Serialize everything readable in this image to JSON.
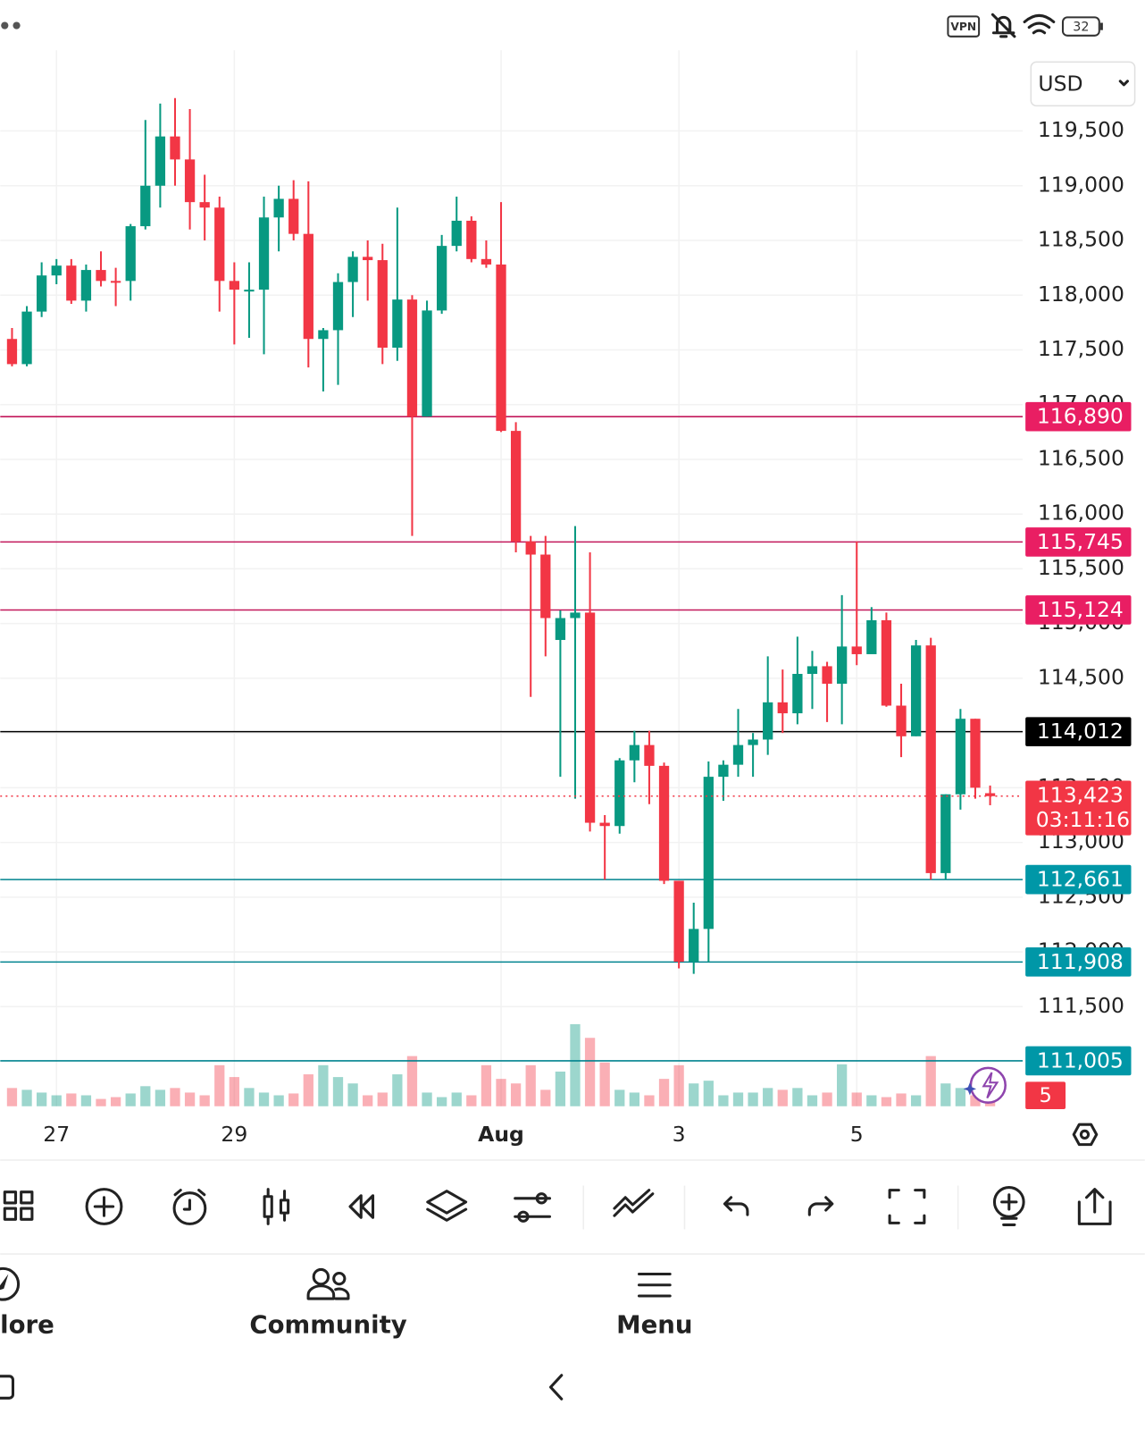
{
  "status_bar": {
    "vpn": "VPN",
    "battery": "32"
  },
  "currency": "USD",
  "chart_data": {
    "type": "candlestick",
    "up_color": "#089981",
    "down_color": "#f23645",
    "open": [
      117600,
      117370,
      117850,
      118180,
      118270,
      117950,
      118230,
      118130,
      118130,
      118630,
      119000,
      119450,
      119240,
      118850,
      118800,
      118130,
      118050,
      118050,
      118710,
      118880,
      118560,
      117600,
      117680,
      118120,
      118350,
      118320,
      117520,
      117960,
      116890,
      117860,
      118450,
      118680,
      118330,
      118280,
      116760,
      115750,
      115630,
      114850,
      115050,
      115100,
      113180,
      113150,
      113750,
      113890,
      113700,
      112650,
      111910,
      112210,
      113600,
      113710,
      113890,
      113940,
      114280,
      114180,
      114540,
      114610,
      114450,
      114790,
      114720,
      115030,
      114250,
      113970,
      114800,
      112720,
      113440,
      114130,
      113450
    ],
    "high": [
      117700,
      117900,
      118300,
      118330,
      118330,
      118280,
      118400,
      118250,
      118650,
      119600,
      119750,
      119800,
      119700,
      119100,
      118900,
      118300,
      118300,
      118900,
      119000,
      119050,
      119040,
      117700,
      118200,
      118400,
      118500,
      118470,
      118800,
      118000,
      117950,
      118550,
      118900,
      118720,
      118500,
      118850,
      116840,
      115800,
      115800,
      115120,
      115890,
      115650,
      113250,
      113770,
      114020,
      114020,
      113730,
      112650,
      112450,
      113740,
      113750,
      114220,
      114000,
      114700,
      114580,
      114880,
      114750,
      114650,
      115260,
      115750,
      115150,
      115100,
      114450,
      114850,
      114870,
      113440,
      114220,
      114130,
      113520
    ],
    "low": [
      117350,
      117350,
      117800,
      118100,
      117920,
      117850,
      118080,
      117900,
      117950,
      118600,
      118800,
      119000,
      118600,
      118500,
      117850,
      117550,
      117610,
      117460,
      118400,
      118500,
      117340,
      117120,
      117180,
      117800,
      117950,
      117370,
      117400,
      115800,
      116890,
      117830,
      118400,
      118300,
      118250,
      116750,
      115650,
      114330,
      114700,
      113600,
      113400,
      113100,
      112660,
      113080,
      113550,
      113350,
      112620,
      111850,
      111800,
      111908,
      113380,
      113600,
      113600,
      113800,
      114000,
      114080,
      114220,
      114100,
      114080,
      114620,
      114730,
      114240,
      113780,
      113970,
      112660,
      112660,
      113300,
      113400,
      113340
    ],
    "close": [
      117370,
      117850,
      118180,
      118270,
      117950,
      118230,
      118130,
      118120,
      118630,
      119000,
      119450,
      119240,
      118850,
      118800,
      118130,
      118050,
      118050,
      118710,
      118880,
      118560,
      117600,
      117680,
      118120,
      118350,
      118320,
      117520,
      117960,
      116890,
      117860,
      118450,
      118680,
      118330,
      118280,
      116760,
      115750,
      115630,
      115050,
      115050,
      115100,
      113180,
      113150,
      113750,
      113890,
      113700,
      112650,
      111910,
      112210,
      113600,
      113710,
      113890,
      113940,
      114280,
      114180,
      114540,
      114610,
      114450,
      114790,
      114720,
      115030,
      114250,
      113970,
      114800,
      112720,
      113440,
      114130,
      113500,
      113423
    ],
    "volume": [
      20,
      18,
      15,
      12,
      14,
      12,
      8,
      10,
      14,
      22,
      18,
      20,
      15,
      12,
      45,
      32,
      20,
      15,
      12,
      14,
      35,
      45,
      32,
      25,
      12,
      15,
      35,
      55,
      15,
      10,
      15,
      12,
      45,
      30,
      25,
      45,
      18,
      38,
      90,
      75,
      48,
      18,
      15,
      12,
      30,
      45,
      25,
      28,
      12,
      15,
      15,
      20,
      18,
      20,
      12,
      15,
      46,
      15,
      12,
      10,
      14,
      12,
      55,
      25,
      20,
      12,
      10
    ],
    "xlim": [
      -0.8,
      68.2
    ],
    "ylim": [
      110590,
      120180
    ],
    "grid": true,
    "xticks": [
      {
        "value": 3,
        "label": "27"
      },
      {
        "value": 15,
        "label": "29"
      },
      {
        "value": 33,
        "label": "Aug"
      },
      {
        "value": 45,
        "label": "3"
      },
      {
        "value": 57,
        "label": "5"
      }
    ],
    "yticks": [
      {
        "value": 111500,
        "label": "111,500"
      },
      {
        "value": 112000,
        "label": "112,000"
      },
      {
        "value": 112500,
        "label": "112,500"
      },
      {
        "value": 113000,
        "label": "113,000"
      },
      {
        "value": 113500,
        "label": "113,500"
      },
      {
        "value": 114000,
        "label": "114,000"
      },
      {
        "value": 114500,
        "label": "114,500"
      },
      {
        "value": 115000,
        "label": "115,000"
      },
      {
        "value": 115500,
        "label": "115,500"
      },
      {
        "value": 116000,
        "label": "116,000"
      },
      {
        "value": 116500,
        "label": "116,500"
      },
      {
        "value": 117000,
        "label": "117,000"
      },
      {
        "value": 117500,
        "label": "117,500"
      },
      {
        "value": 118000,
        "label": "118,000"
      },
      {
        "value": 118500,
        "label": "118,500"
      },
      {
        "value": 119000,
        "label": "119,000"
      },
      {
        "value": 119500,
        "label": "119,500"
      }
    ],
    "levels": [
      {
        "value": 116890,
        "label": "116,890",
        "color": "#c2185b",
        "badge_color": "#e91e63"
      },
      {
        "value": 115745,
        "label": "115,745",
        "color": "#c2185b",
        "badge_color": "#e91e63"
      },
      {
        "value": 115124,
        "label": "115,124",
        "color": "#c2185b",
        "badge_color": "#e91e63"
      },
      {
        "value": 114012,
        "label": "114,012",
        "color": "#000000",
        "badge_color": "#000000"
      },
      {
        "value": 112661,
        "label": "112,661",
        "color": "#00838f",
        "badge_color": "#0097a7"
      },
      {
        "value": 111908,
        "label": "111,908",
        "color": "#00838f",
        "badge_color": "#0097a7"
      },
      {
        "value": 111005,
        "label": "111,005",
        "color": "#00838f",
        "badge_color": "#0097a7"
      }
    ],
    "last_price": {
      "value": 113423,
      "label": "113,423",
      "countdown": "03:11:16",
      "color": "#f23645"
    },
    "alert_count": "5"
  },
  "nav": {
    "items": [
      "lore",
      "Community",
      "Menu"
    ]
  }
}
